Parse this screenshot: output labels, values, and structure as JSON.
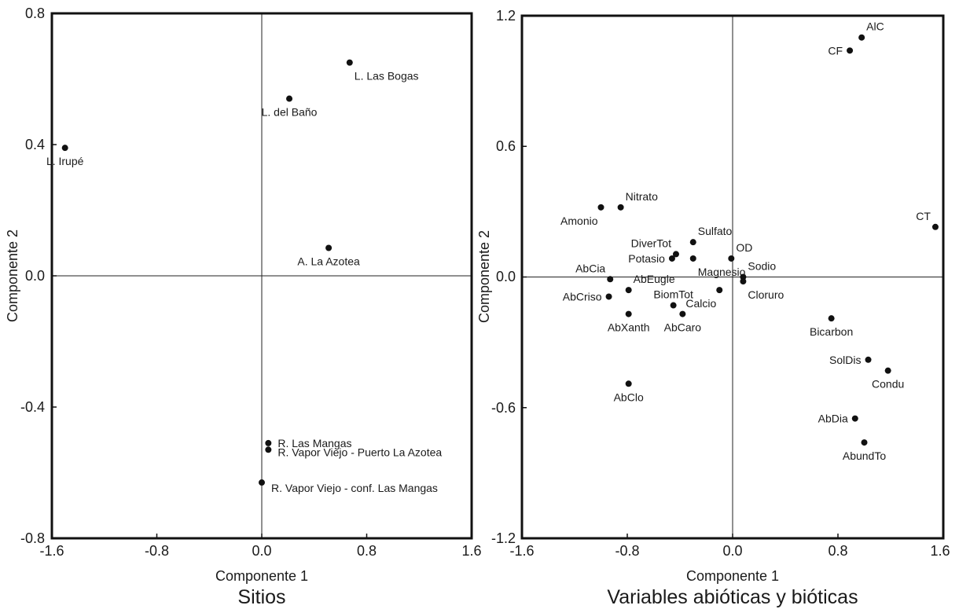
{
  "chart_data": [
    {
      "type": "scatter",
      "title": "Sitios",
      "xlabel": "Componente 1",
      "ylabel": "Componente 2",
      "xlim": [
        -1.6,
        1.6
      ],
      "ylim": [
        -0.8,
        0.8
      ],
      "xticks": [
        "-1.6",
        "-0.8",
        "0.0",
        "0.8",
        "1.6"
      ],
      "yticks": [
        "0.8",
        "0.4",
        "0.0",
        "-0.4",
        "-0.8"
      ],
      "points": [
        {
          "label": "L. Las Bogas",
          "x": 0.67,
          "y": 0.65,
          "anchor": "below-right"
        },
        {
          "label": "L. del Baño",
          "x": 0.21,
          "y": 0.54,
          "anchor": "below"
        },
        {
          "label": "L. Irupé",
          "x": -1.5,
          "y": 0.39,
          "anchor": "below"
        },
        {
          "label": "A. La Azotea",
          "x": 0.51,
          "y": 0.085,
          "anchor": "below"
        },
        {
          "label": "R. Las Mangas",
          "x": 0.05,
          "y": -0.51,
          "anchor": "right"
        },
        {
          "label": "R. Vapor Viejo - Puerto La Azotea",
          "x": 0.05,
          "y": -0.53,
          "anchor": "right-low"
        },
        {
          "label": "R. Vapor Viejo - conf. Las Mangas",
          "x": 0.0,
          "y": -0.63,
          "anchor": "right-low2"
        }
      ]
    },
    {
      "type": "scatter",
      "title": "Variables abióticas y bióticas",
      "xlabel": "Componente 1",
      "ylabel": "Componente 2",
      "xlim": [
        -1.6,
        1.6
      ],
      "ylim": [
        -1.2,
        1.2
      ],
      "xticks": [
        "-1.6",
        "-0.8",
        "0.0",
        "0.8",
        "1.6"
      ],
      "yticks": [
        "1.2",
        "0.6",
        "0.0",
        "-0.6",
        "-1.2"
      ],
      "points": [
        {
          "label": "AlC",
          "x": 0.98,
          "y": 1.1,
          "anchor": "above-right"
        },
        {
          "label": "CF",
          "x": 0.89,
          "y": 1.04,
          "anchor": "left"
        },
        {
          "label": "CT",
          "x": 1.54,
          "y": 0.23,
          "anchor": "above-left"
        },
        {
          "label": "Nitrato",
          "x": -0.85,
          "y": 0.32,
          "anchor": "above-right"
        },
        {
          "label": "Amonio",
          "x": -1.0,
          "y": 0.32,
          "anchor": "below-left"
        },
        {
          "label": "Sulfato",
          "x": -0.3,
          "y": 0.16,
          "anchor": "above-right"
        },
        {
          "label": "DiverTot",
          "x": -0.43,
          "y": 0.105,
          "anchor": "above-left"
        },
        {
          "label": "Potasio",
          "x": -0.46,
          "y": 0.085,
          "anchor": "left"
        },
        {
          "label": "Magnesio",
          "x": -0.3,
          "y": 0.085,
          "anchor": "below-right"
        },
        {
          "label": "OD",
          "x": -0.01,
          "y": 0.085,
          "anchor": "above-right"
        },
        {
          "label": "Sodio",
          "x": 0.08,
          "y": 0.0,
          "anchor": "above-right"
        },
        {
          "label": "Cloruro",
          "x": 0.08,
          "y": -0.02,
          "anchor": "below-right"
        },
        {
          "label": "Calcio",
          "x": -0.1,
          "y": -0.06,
          "anchor": "below-left"
        },
        {
          "label": "AbCia",
          "x": -0.93,
          "y": -0.01,
          "anchor": "above-left"
        },
        {
          "label": "AbEugle",
          "x": -0.79,
          "y": -0.06,
          "anchor": "above-right"
        },
        {
          "label": "AbCriso",
          "x": -0.94,
          "y": -0.09,
          "anchor": "left"
        },
        {
          "label": "BiomTot",
          "x": -0.45,
          "y": -0.13,
          "anchor": "above"
        },
        {
          "label": "AbCaro",
          "x": -0.38,
          "y": -0.17,
          "anchor": "below"
        },
        {
          "label": "AbXanth",
          "x": -0.79,
          "y": -0.17,
          "anchor": "below"
        },
        {
          "label": "Bicarbon",
          "x": 0.75,
          "y": -0.19,
          "anchor": "below"
        },
        {
          "label": "SolDis",
          "x": 1.03,
          "y": -0.38,
          "anchor": "left"
        },
        {
          "label": "Condu",
          "x": 1.18,
          "y": -0.43,
          "anchor": "below"
        },
        {
          "label": "AbClo",
          "x": -0.79,
          "y": -0.49,
          "anchor": "below"
        },
        {
          "label": "AbDia",
          "x": 0.93,
          "y": -0.65,
          "anchor": "left"
        },
        {
          "label": "AbundTo",
          "x": 1.0,
          "y": -0.76,
          "anchor": "below"
        }
      ]
    }
  ]
}
